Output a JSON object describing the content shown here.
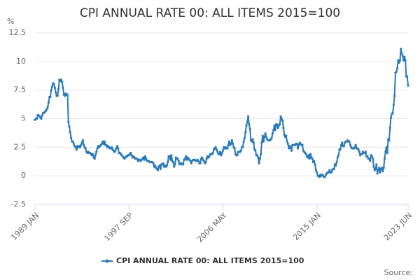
{
  "chart_data": {
    "type": "line",
    "title": "CPI ANNUAL RATE 00: ALL ITEMS 2015=100",
    "y_unit": "%",
    "source": "Source:",
    "legend": "bottom",
    "grid": true,
    "ylim": [
      -2.5,
      12.5
    ],
    "yticks": [
      -2.5,
      0,
      2.5,
      5,
      7.5,
      10,
      12.5
    ],
    "categories": [
      "1989 JAN",
      null,
      null,
      null,
      null,
      null,
      null,
      null,
      null,
      null,
      null,
      null,
      null,
      null,
      null,
      null,
      null,
      null,
      null,
      null,
      null,
      null,
      null,
      null,
      null,
      null,
      null,
      null,
      null,
      null,
      null,
      null,
      null,
      null,
      null,
      null,
      null,
      null,
      null,
      null,
      null,
      null,
      null,
      null,
      null,
      null,
      null,
      null,
      null,
      null,
      null,
      null,
      null,
      null,
      null,
      null,
      null,
      null,
      null,
      null,
      null,
      null,
      null,
      null,
      null,
      null,
      null,
      null,
      null,
      null,
      null,
      null,
      null,
      null,
      null,
      null,
      null,
      null,
      null,
      null,
      null,
      null,
      null,
      null,
      null,
      null,
      null,
      null,
      null,
      null,
      null,
      null,
      null,
      null,
      null,
      null,
      null,
      null,
      null,
      null,
      null,
      null,
      null,
      null,
      "1997 SEP",
      null,
      null,
      null,
      null,
      null,
      null,
      null,
      null,
      null,
      null,
      null,
      null,
      null,
      null,
      null,
      null,
      null,
      null,
      null,
      null,
      null,
      null,
      null,
      null,
      null,
      null,
      null,
      null,
      null,
      null,
      null,
      null,
      null,
      null,
      null,
      null,
      null,
      null,
      null,
      null,
      null,
      null,
      null,
      null,
      null,
      null,
      null,
      null,
      null,
      null,
      null,
      null,
      null,
      null,
      null,
      null,
      null,
      null,
      null,
      null,
      null,
      null,
      null,
      null,
      null,
      null,
      null,
      null,
      null,
      null,
      null,
      null,
      null,
      null,
      null,
      null,
      null,
      null,
      null,
      null,
      null,
      null,
      null,
      null,
      null,
      null,
      null,
      null,
      null,
      null,
      null,
      null,
      null,
      null,
      null,
      null,
      null,
      null,
      null,
      null,
      null,
      null,
      null,
      "2006 MAY",
      null,
      null,
      null,
      null,
      null,
      null,
      null,
      null,
      null,
      null,
      null,
      null,
      null,
      null,
      null,
      null,
      null,
      null,
      null,
      null,
      null,
      null,
      null,
      null,
      null,
      null,
      null,
      null,
      null,
      null,
      null,
      null,
      null,
      null,
      null,
      null,
      null,
      null,
      null,
      null,
      null,
      null,
      null,
      null,
      null,
      null,
      null,
      null,
      null,
      null,
      null,
      null,
      null,
      null,
      null,
      null,
      null,
      null,
      null,
      null,
      null,
      null,
      null,
      null,
      null,
      null,
      null,
      null,
      null,
      null,
      null,
      null,
      null,
      null,
      null,
      null,
      null,
      null,
      null,
      null,
      null,
      null,
      null,
      null,
      null,
      null,
      null,
      null,
      null,
      null,
      null,
      null,
      null,
      null,
      null,
      null,
      null,
      null,
      null,
      null,
      null,
      null,
      null,
      "2015 JAN",
      null,
      null,
      null,
      null,
      null,
      null,
      null,
      null,
      null,
      null,
      null,
      null,
      null,
      null,
      null,
      null,
      null,
      null,
      null,
      null,
      null,
      null,
      null,
      null,
      null,
      null,
      null,
      null,
      null,
      null,
      null,
      null,
      null,
      null,
      null,
      null,
      null,
      null,
      null,
      null,
      null,
      null,
      null,
      null,
      null,
      null,
      null,
      null,
      null,
      null,
      null,
      null,
      null,
      null,
      null,
      null,
      null,
      null,
      null,
      null,
      null,
      null,
      null,
      null,
      null,
      null,
      null,
      null,
      null,
      null,
      null,
      null,
      null,
      null,
      null,
      null,
      null,
      null,
      null,
      null,
      null,
      null,
      null,
      null,
      null,
      null,
      null,
      null,
      null,
      null,
      null,
      null,
      null,
      null,
      null,
      null,
      null,
      null,
      null,
      null,
      "2023 JUN"
    ],
    "series": [
      {
        "name": "CPI ANNUAL RATE 00: ALL ITEMS 2015=100",
        "color": "#2a7ab8",
        "values": [
          4.9,
          5.0,
          5.0,
          5.3,
          5.3,
          5.2,
          5.1,
          5.0,
          5.3,
          5.5,
          5.5,
          5.6,
          5.7,
          5.8,
          6.0,
          6.4,
          6.9,
          6.9,
          7.5,
          7.8,
          8.1,
          8.0,
          7.7,
          7.3,
          7.0,
          7.0,
          7.6,
          8.4,
          8.3,
          8.4,
          8.2,
          7.7,
          7.1,
          7.0,
          7.2,
          7.1,
          7.1,
          4.7,
          4.3,
          3.8,
          3.3,
          3.0,
          3.0,
          2.8,
          2.6,
          2.5,
          2.3,
          2.6,
          2.5,
          2.6,
          2.5,
          2.7,
          2.9,
          3.1,
          2.7,
          2.5,
          2.4,
          2.1,
          2.0,
          2.1,
          2.0,
          2.0,
          1.9,
          1.8,
          1.9,
          1.6,
          1.5,
          1.8,
          2.1,
          2.4,
          2.6,
          2.5,
          2.6,
          2.7,
          2.8,
          3.0,
          2.8,
          3.0,
          2.7,
          2.7,
          2.5,
          2.6,
          2.5,
          2.4,
          2.4,
          2.5,
          2.3,
          2.2,
          2.1,
          2.2,
          2.4,
          2.6,
          2.4,
          2.0,
          2.0,
          1.9,
          1.8,
          1.7,
          1.6,
          1.5,
          1.6,
          1.7,
          1.7,
          1.8,
          1.8,
          1.9,
          2.0,
          1.8,
          1.6,
          1.7,
          1.6,
          1.5,
          1.5,
          1.5,
          1.3,
          1.4,
          1.4,
          1.3,
          1.4,
          1.5,
          1.6,
          1.4,
          1.7,
          1.5,
          1.3,
          1.3,
          1.3,
          1.2,
          1.2,
          1.2,
          1.2,
          1.1,
          0.8,
          0.9,
          0.7,
          0.6,
          0.5,
          0.8,
          0.9,
          0.6,
          1.0,
          1.0,
          1.1,
          0.8,
          0.9,
          0.8,
          0.9,
          1.2,
          1.7,
          1.7,
          1.4,
          1.8,
          1.3,
          1.2,
          0.8,
          1.0,
          1.6,
          1.5,
          1.5,
          1.3,
          1.0,
          1.1,
          1.1,
          1.0,
          1.0,
          1.4,
          1.5,
          1.7,
          1.4,
          1.6,
          1.5,
          1.4,
          1.3,
          1.1,
          1.3,
          1.4,
          1.4,
          1.4,
          1.3,
          1.3,
          1.4,
          1.3,
          1.1,
          1.1,
          1.5,
          1.6,
          1.4,
          1.3,
          1.1,
          1.2,
          1.5,
          1.7,
          1.6,
          1.7,
          1.9,
          1.9,
          1.9,
          2.0,
          2.3,
          2.4,
          2.5,
          2.3,
          2.1,
          1.9,
          1.9,
          2.1,
          1.8,
          2.0,
          2.2,
          2.5,
          2.4,
          2.5,
          2.4,
          2.4,
          2.7,
          3.0,
          2.7,
          2.8,
          3.1,
          2.8,
          2.5,
          2.4,
          1.9,
          1.8,
          1.8,
          2.1,
          2.1,
          2.1,
          2.2,
          2.5,
          2.5,
          3.0,
          3.3,
          3.8,
          4.4,
          4.7,
          5.2,
          4.5,
          4.1,
          3.1,
          3.0,
          3.2,
          2.9,
          2.3,
          2.2,
          1.8,
          1.8,
          1.6,
          1.1,
          1.5,
          1.9,
          2.9,
          3.5,
          3.0,
          3.4,
          3.7,
          3.4,
          3.2,
          3.1,
          3.1,
          3.1,
          3.2,
          3.3,
          3.7,
          4.0,
          4.4,
          4.0,
          4.5,
          4.5,
          4.2,
          4.4,
          4.5,
          5.2,
          5.0,
          4.8,
          4.2,
          3.6,
          3.4,
          3.5,
          3.0,
          2.8,
          2.4,
          2.6,
          2.5,
          2.2,
          2.7,
          2.7,
          2.7,
          2.7,
          2.8,
          2.8,
          2.4,
          2.7,
          2.9,
          2.8,
          2.7,
          2.7,
          2.2,
          2.1,
          2.0,
          1.9,
          1.7,
          1.6,
          1.8,
          1.5,
          1.9,
          1.6,
          1.5,
          1.2,
          1.3,
          1.0,
          0.5,
          0.3,
          0.0,
          0.0,
          -0.1,
          0.1,
          0.0,
          0.1,
          0.0,
          -0.1,
          -0.1,
          0.1,
          0.2,
          0.3,
          0.3,
          0.5,
          0.3,
          0.3,
          0.5,
          0.6,
          0.6,
          1.0,
          0.9,
          1.2,
          1.6,
          1.8,
          2.3,
          2.3,
          2.7,
          2.9,
          2.6,
          2.6,
          2.9,
          3.0,
          3.0,
          3.1,
          3.0,
          3.0,
          2.7,
          2.5,
          2.4,
          2.4,
          2.4,
          2.5,
          2.7,
          2.4,
          2.4,
          2.3,
          2.1,
          1.8,
          1.9,
          1.9,
          2.1,
          2.0,
          2.0,
          2.1,
          1.7,
          1.7,
          1.5,
          1.5,
          1.3,
          1.8,
          1.7,
          1.5,
          0.8,
          0.5,
          0.6,
          1.0,
          0.2,
          0.5,
          0.7,
          0.3,
          0.6,
          0.7,
          0.4,
          0.7,
          1.5,
          2.1,
          2.5,
          2.0,
          3.2,
          3.1,
          4.2,
          5.1,
          5.4,
          5.5,
          6.2,
          7.0,
          9.0,
          9.1,
          9.4,
          10.1,
          9.9,
          10.1,
          11.1,
          10.7,
          10.5,
          10.1,
          10.4,
          10.1,
          8.7,
          8.7,
          7.9
        ]
      }
    ]
  }
}
